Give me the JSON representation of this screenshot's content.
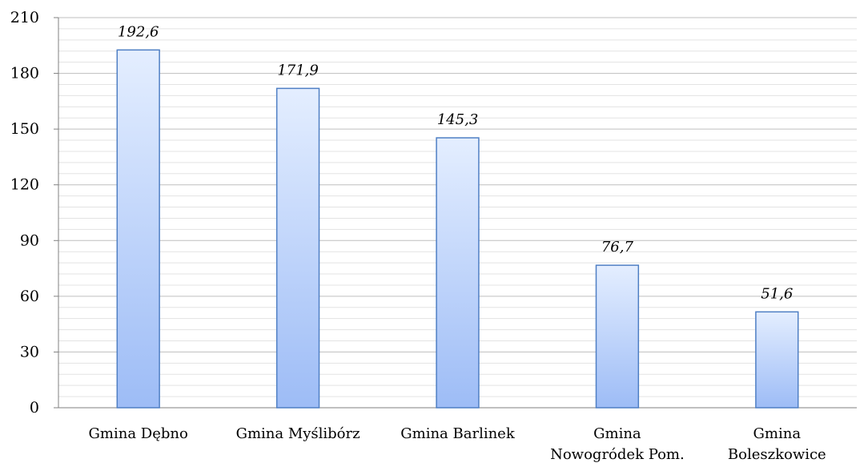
{
  "chart_data": {
    "type": "bar",
    "title": "",
    "xlabel": "",
    "ylabel": "",
    "categories": [
      [
        "Gmina Dębno"
      ],
      [
        "Gmina Myślibórz"
      ],
      [
        "Gmina Barlinek"
      ],
      [
        "Gmina",
        "Nowogródek Pom."
      ],
      [
        "Gmina",
        "Boleszkowice"
      ]
    ],
    "values": [
      192.6,
      171.9,
      145.3,
      76.7,
      51.6
    ],
    "value_labels": [
      "192,6",
      "171,9",
      "145,3",
      "76,7",
      "51,6"
    ],
    "ylim": [
      0,
      210
    ],
    "yticks": [
      0,
      30,
      60,
      90,
      120,
      150,
      180,
      210
    ],
    "ytick_labels": [
      "0",
      "30",
      "60",
      "90",
      "120",
      "150",
      "180",
      "210"
    ],
    "grid": "horizontal major and minor",
    "legend": "none",
    "colors": {
      "bar_top": "#e4eeff",
      "bar_bottom": "#9dbcf6",
      "bar_edge": "#4f7fc4",
      "grid_major": "#bfbfbf",
      "grid_minor": "#e3e3e3",
      "axis": "#808080"
    }
  }
}
